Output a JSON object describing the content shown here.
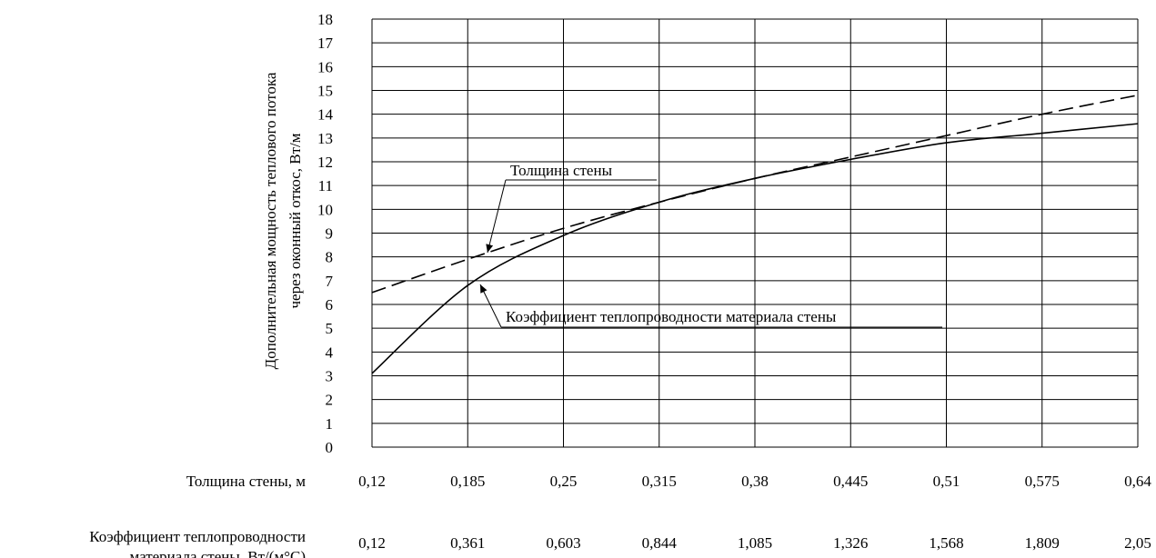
{
  "chart_data": {
    "type": "line",
    "ylabel_lines": [
      "Дополнительная мощность теплового потока",
      "через оконный откос, Вт/м"
    ],
    "ylim": [
      0,
      18
    ],
    "yticks": [
      "0",
      "1",
      "2",
      "3",
      "4",
      "5",
      "6",
      "7",
      "8",
      "9",
      "10",
      "11",
      "12",
      "13",
      "14",
      "15",
      "16",
      "17",
      "18"
    ],
    "x_rows": [
      {
        "label_lines": [
          "Толщина стены, м"
        ],
        "ticks": [
          "0,12",
          "0,185",
          "0,25",
          "0,315",
          "0,38",
          "0,445",
          "0,51",
          "0,575",
          "0,64"
        ]
      },
      {
        "label_lines": [
          "Коэффициент теплопроводности",
          "материала стены, Вт/(м°С)"
        ],
        "ticks": [
          "0,12",
          "0,361",
          "0,603",
          "0,844",
          "1,085",
          "1,326",
          "1,568",
          "1,809",
          "2,05"
        ]
      }
    ],
    "grid": true,
    "series": [
      {
        "name": "Толщина стены",
        "style": "dashed",
        "x": [
          0.12,
          0.185,
          0.25,
          0.315,
          0.38,
          0.445,
          0.51,
          0.575,
          0.64
        ],
        "y": [
          6.5,
          7.9,
          9.2,
          10.3,
          11.3,
          12.2,
          13.1,
          14.0,
          14.8
        ]
      },
      {
        "name": "Коэффициент теплопроводности материала стены",
        "style": "solid",
        "x": [
          0.12,
          0.361,
          0.603,
          0.844,
          1.085,
          1.326,
          1.568,
          1.809,
          2.05
        ],
        "y": [
          3.1,
          6.8,
          8.9,
          10.3,
          11.3,
          12.1,
          12.8,
          13.2,
          13.6
        ]
      }
    ],
    "annotations": [
      "Толщина стены",
      "Коэффициент теплопроводности материала стены"
    ]
  }
}
